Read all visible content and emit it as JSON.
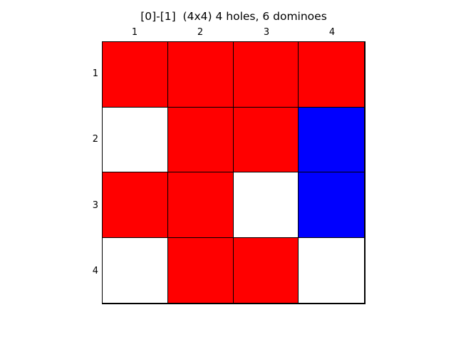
{
  "title": "[0]-[1]  (4x4) 4 holes, 6 dominoes",
  "columns": [
    "1",
    "2",
    "3",
    "4"
  ],
  "rows": [
    "1",
    "2",
    "3",
    "4"
  ],
  "colors": {
    "red": "#ff0000",
    "blue": "#0000ff",
    "hole": "#ffffff"
  },
  "board": [
    [
      "red",
      "red",
      "red",
      "red"
    ],
    [
      "hole",
      "red",
      "red",
      "blue"
    ],
    [
      "red",
      "red",
      "hole",
      "blue"
    ],
    [
      "hole",
      "red",
      "red",
      "hole"
    ]
  ]
}
